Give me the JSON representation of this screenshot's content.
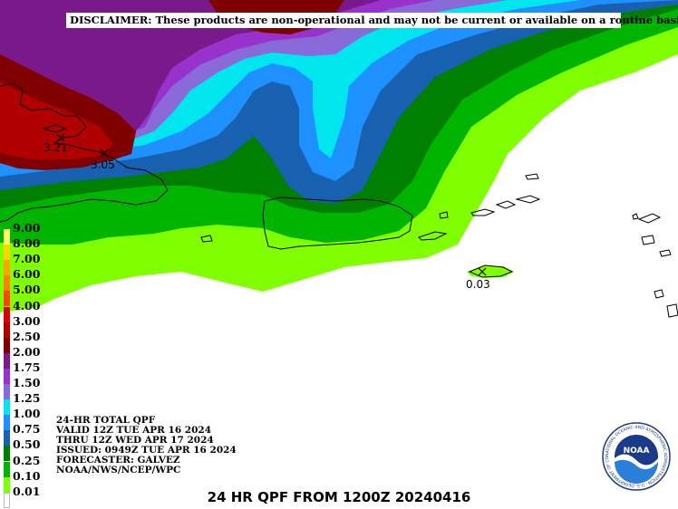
{
  "disclaimer": "DISCLAIMER:  These products are non-operational and may not be current or available on a routine basis.",
  "legend": {
    "items": [
      {
        "label": "9.00",
        "color": "#ffff66"
      },
      {
        "label": "8.00",
        "color": "#ffd700"
      },
      {
        "label": "7.00",
        "color": "#ffa500"
      },
      {
        "label": "6.00",
        "color": "#ff7f00"
      },
      {
        "label": "5.00",
        "color": "#ff4500"
      },
      {
        "label": "4.00",
        "color": "#e00000"
      },
      {
        "label": "3.00",
        "color": "#b00000"
      },
      {
        "label": "2.50",
        "color": "#800000"
      },
      {
        "label": "2.00",
        "color": "#7a1a8a"
      },
      {
        "label": "1.75",
        "color": "#9932cc"
      },
      {
        "label": "1.50",
        "color": "#8a6ad8"
      },
      {
        "label": "1.25",
        "color": "#00e5ee"
      },
      {
        "label": "1.00",
        "color": "#1e90ff"
      },
      {
        "label": "0.75",
        "color": "#1860b0"
      },
      {
        "label": "0.50",
        "color": "#007f00"
      },
      {
        "label": "0.25",
        "color": "#00b400"
      },
      {
        "label": "0.10",
        "color": "#7fff00"
      },
      {
        "label": "0.01",
        "color": "#ffffff"
      }
    ]
  },
  "info": {
    "line1": "24-HR TOTAL QPF",
    "line2": "VALID 12Z TUE APR 16 2024",
    "line3": "THRU 12Z WED APR 17 2024",
    "line4": "ISSUED: 0949Z TUE APR 16 2024",
    "line5": "FORECASTER: GALVEZ",
    "line6": "NOAA/NWS/NCEP/WPC"
  },
  "maxima": [
    {
      "value": "3.21"
    },
    {
      "value": "3.05"
    },
    {
      "value": "0.03"
    }
  ],
  "footer_title": "24 HR QPF FROM 1200Z 20240416",
  "logo": {
    "text": "NOAA",
    "ring_text": "NATIONAL OCEANIC AND ATMOSPHERIC ADMINISTRATION · U.S. DEPARTMENT OF COMMERCE"
  },
  "colors": {
    "background": "#ffffff",
    "coastline": "#000000"
  }
}
